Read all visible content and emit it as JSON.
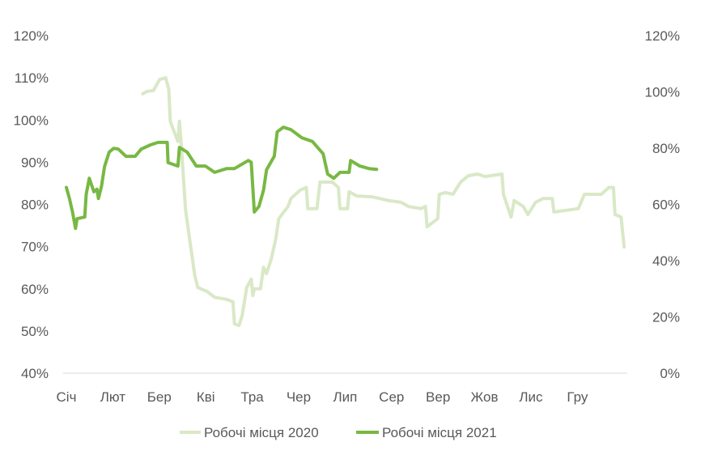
{
  "chart_data": {
    "type": "line",
    "title": "",
    "xlabel": "",
    "ylabel": "",
    "x_unit": "day of year",
    "x_ticks": [
      "Січ",
      "Лют",
      "Бер",
      "Кві",
      "Тра",
      "Чер",
      "Лип",
      "Сер",
      "Вер",
      "Жов",
      "Лис",
      "Гру"
    ],
    "y_left_ticks": [
      "120%",
      "110%",
      "100%",
      "90%",
      "80%",
      "70%",
      "60%",
      "50%",
      "40%"
    ],
    "y_right_ticks": [
      "120%",
      "100%",
      "80%",
      "60%",
      "40%",
      "20%",
      "0%"
    ],
    "ylim": [
      40,
      120
    ],
    "xlim": [
      0,
      365
    ],
    "grid": false,
    "legend": "bottom",
    "colors": {
      "2020": "#d9e8c6",
      "2021": "#78b843",
      "axis": "#d9d9d9"
    },
    "series": [
      {
        "name": "Робочі місця 2020",
        "x": [
          50,
          53,
          57,
          61,
          65,
          67,
          68,
          70,
          73,
          74,
          75,
          78,
          84,
          86,
          92,
          97,
          105,
          109,
          110,
          113,
          115,
          118,
          121,
          122,
          123,
          127,
          129,
          131,
          134,
          137,
          139,
          145,
          147,
          153,
          157,
          158,
          164,
          166,
          174,
          178,
          179,
          184,
          185,
          190,
          200,
          211,
          219,
          224,
          232,
          235,
          236,
          243,
          244,
          248,
          253,
          258,
          263,
          269,
          274,
          285,
          286,
          291,
          293,
          299,
          302,
          307,
          312,
          318,
          319,
          327,
          335,
          339,
          350,
          355,
          358,
          359,
          363,
          365
        ],
        "y": [
          106.2,
          106.8,
          107,
          109.6,
          110,
          107.3,
          99.7,
          97.7,
          94.9,
          99.7,
          94.9,
          78.6,
          63.2,
          60.3,
          59.4,
          58,
          57.5,
          56.9,
          51.7,
          51.3,
          53.6,
          60.3,
          62.3,
          58.4,
          60,
          60,
          65.1,
          63.6,
          67,
          71.8,
          76.6,
          79.5,
          81.4,
          83.4,
          84,
          79,
          79,
          85.3,
          85.3,
          84,
          79,
          79,
          83,
          82,
          81.8,
          80.9,
          80.5,
          79.5,
          79,
          79.5,
          74.7,
          76.6,
          82.4,
          82.8,
          82.4,
          85.3,
          86.8,
          87.2,
          86.6,
          87.2,
          82.4,
          77,
          80.9,
          79.5,
          77.6,
          80.5,
          81.4,
          81.4,
          78.2,
          78.6,
          79,
          82.4,
          82.4,
          84,
          84,
          77.6,
          77,
          69.9
        ]
      },
      {
        "name": "Робочі місця 2021",
        "x": [
          0,
          2,
          4,
          6,
          7,
          12,
          13,
          15,
          18,
          20,
          21,
          23,
          25,
          28,
          31,
          34,
          39,
          45,
          49,
          55,
          60,
          66,
          66.5,
          73,
          74,
          79,
          85,
          91,
          97,
          105,
          110,
          119,
          121,
          123,
          126,
          129,
          131,
          136,
          138,
          142,
          147,
          154,
          161,
          168,
          171,
          175,
          179,
          185,
          186,
          192,
          198,
          203
        ],
        "y": [
          84,
          81.4,
          78.2,
          74.3,
          76.6,
          77,
          82.4,
          86.2,
          83,
          83.6,
          81.4,
          84.3,
          89,
          92.4,
          93.3,
          93.1,
          91.4,
          91.4,
          93.1,
          94.1,
          94.7,
          94.7,
          89.9,
          89.1,
          93.5,
          92.4,
          89.1,
          89.1,
          87.6,
          88.5,
          88.5,
          90.4,
          90,
          78.2,
          79.5,
          83.4,
          88.2,
          91.4,
          97.2,
          98.3,
          97.7,
          95.8,
          94.9,
          92,
          87.2,
          86.2,
          87.6,
          87.6,
          90.4,
          89.1,
          88.5,
          88.3
        ]
      }
    ]
  }
}
